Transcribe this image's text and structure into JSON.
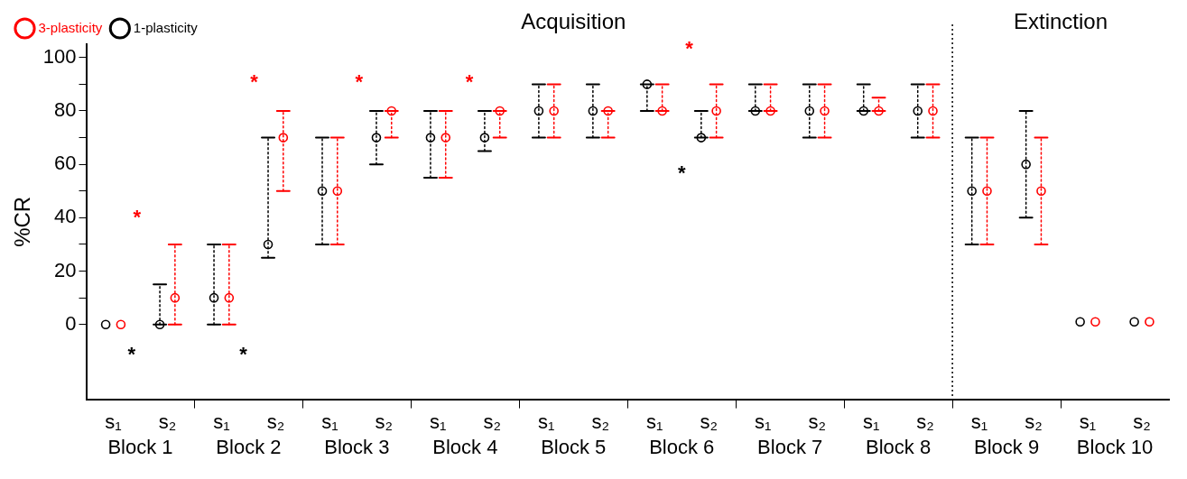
{
  "chart_data": {
    "type": "scatter",
    "ylabel": "%CR",
    "categories": [
      "s₁",
      "s₂",
      "s₁",
      "s₂",
      "s₁",
      "s₂",
      "s₁",
      "s₂",
      "s₁",
      "s₂",
      "s₁",
      "s₂",
      "s₁",
      "s₂",
      "s₁",
      "s₂",
      "s₁",
      "s₂",
      "s₁",
      "s₂"
    ],
    "ylim": [
      -28,
      105
    ],
    "yticks": [
      0,
      {
        "value": 10,
        "label": null
      },
      20,
      {
        "value": 30,
        "label": null
      },
      40,
      {
        "value": 50,
        "label": null
      },
      60,
      {
        "value": 70,
        "label": null
      },
      80,
      {
        "value": 90,
        "label": null
      },
      100
    ],
    "marker": "circle",
    "line_style": "dotted",
    "legend": "top left",
    "grid": false,
    "series": [
      {
        "name": "3-plasticity",
        "color": "#ff0000",
        "values": [
          0,
          10,
          10,
          70,
          50,
          80,
          70,
          80,
          80,
          80,
          80,
          80,
          80,
          80,
          80,
          80,
          50,
          50,
          1,
          1
        ],
        "errors": [
          null,
          [
            0,
            30
          ],
          [
            0,
            30
          ],
          [
            50,
            80
          ],
          [
            30,
            70
          ],
          [
            70,
            80
          ],
          [
            55,
            80
          ],
          [
            70,
            80
          ],
          [
            70,
            90
          ],
          [
            70,
            80
          ],
          [
            80,
            90
          ],
          [
            70,
            90
          ],
          [
            80,
            90
          ],
          [
            70,
            90
          ],
          [
            80,
            85
          ],
          [
            70,
            90
          ],
          [
            30,
            70
          ],
          [
            30,
            70
          ],
          null,
          null
        ]
      },
      {
        "name": "1-plasticity",
        "color": "#000000",
        "values": [
          0,
          0,
          10,
          30,
          50,
          70,
          70,
          70,
          80,
          80,
          90,
          70,
          80,
          80,
          80,
          80,
          50,
          60,
          1,
          1
        ],
        "errors": [
          null,
          [
            0,
            15
          ],
          [
            0,
            30
          ],
          [
            25,
            70
          ],
          [
            30,
            70
          ],
          [
            60,
            80
          ],
          [
            55,
            80
          ],
          [
            65,
            80
          ],
          [
            70,
            90
          ],
          [
            70,
            90
          ],
          [
            80,
            90
          ],
          [
            70,
            80
          ],
          [
            80,
            90
          ],
          [
            70,
            90
          ],
          [
            80,
            90
          ],
          [
            70,
            90
          ],
          [
            30,
            70
          ],
          [
            40,
            80
          ],
          null,
          null
        ]
      }
    ],
    "annotations": [
      "Acquisition",
      "Extinction",
      "Block 1",
      "Block 2",
      "Block 3",
      "Block 4",
      "Block 5",
      "Block 6",
      "Block 7",
      "Block 8",
      "Block 9",
      "Block 10",
      "*",
      "*",
      "*",
      "*",
      "*",
      "*",
      "*",
      "*"
    ]
  }
}
